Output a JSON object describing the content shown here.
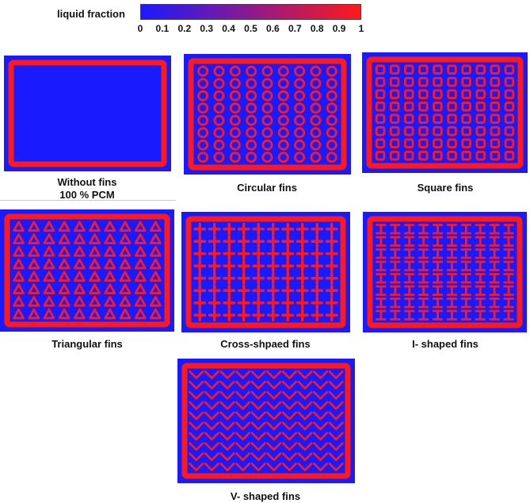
{
  "legend": {
    "title": "liquid fraction",
    "gradient_from": "#1a1aff",
    "gradient_to": "#ff1a1a",
    "ticks": [
      "0",
      "0.1",
      "0.2",
      "0.3",
      "0.4",
      "0.5",
      "0.6",
      "0.7",
      "0.8",
      "0.9",
      "1"
    ]
  },
  "colors": {
    "pcm": "#1a1aff",
    "fin": "#ff1a1a"
  },
  "panels": [
    {
      "id": "without",
      "caption_line1": "Without fins",
      "caption_line2": "100 % PCM",
      "shape": "none",
      "cols": 0,
      "rows": 0
    },
    {
      "id": "circular",
      "caption_line1": "Circular fins",
      "caption_line2": "",
      "shape": "circle",
      "cols": 9,
      "rows": 8
    },
    {
      "id": "square",
      "caption_line1": "Square fins",
      "caption_line2": "",
      "shape": "square",
      "cols": 10,
      "rows": 8
    },
    {
      "id": "triangular",
      "caption_line1": "Triangular fins",
      "caption_line2": "",
      "shape": "triangle",
      "cols": 10,
      "rows": 8
    },
    {
      "id": "cross",
      "caption_line1": "Cross-shpaed fins",
      "caption_line2": "",
      "shape": "cross",
      "cols": 10,
      "rows": 8
    },
    {
      "id": "ishape",
      "caption_line1": "I- shaped fins",
      "caption_line2": "",
      "shape": "ibeam",
      "cols": 10,
      "rows": 8
    },
    {
      "id": "vshape",
      "caption_line1": "V- shaped fins",
      "caption_line2": "",
      "shape": "vee",
      "cols": 10,
      "rows": 10
    }
  ]
}
